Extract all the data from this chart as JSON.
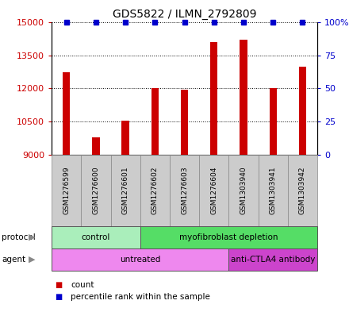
{
  "title": "GDS5822 / ILMN_2792809",
  "samples": [
    "GSM1276599",
    "GSM1276600",
    "GSM1276601",
    "GSM1276602",
    "GSM1276603",
    "GSM1276604",
    "GSM1303940",
    "GSM1303941",
    "GSM1303942"
  ],
  "counts": [
    12750,
    9800,
    10550,
    12000,
    11950,
    14100,
    14200,
    12000,
    13000
  ],
  "percentile_ranks": [
    100,
    100,
    100,
    100,
    100,
    100,
    100,
    100,
    100
  ],
  "y_min": 9000,
  "y_max": 15000,
  "y_ticks": [
    9000,
    10500,
    12000,
    13500,
    15000
  ],
  "y_right_ticks": [
    0,
    25,
    50,
    75,
    100
  ],
  "bar_color": "#cc0000",
  "dot_color": "#0000cc",
  "protocol_groups": [
    {
      "label": "control",
      "start": 0,
      "end": 3,
      "color": "#aaeebb"
    },
    {
      "label": "myofibroblast depletion",
      "start": 3,
      "end": 9,
      "color": "#55dd66"
    }
  ],
  "agent_groups": [
    {
      "label": "untreated",
      "start": 0,
      "end": 6,
      "color": "#ee88ee"
    },
    {
      "label": "anti-CTLA4 antibody",
      "start": 6,
      "end": 9,
      "color": "#cc44cc"
    }
  ],
  "sample_box_color": "#cccccc",
  "sample_box_edge": "#888888"
}
